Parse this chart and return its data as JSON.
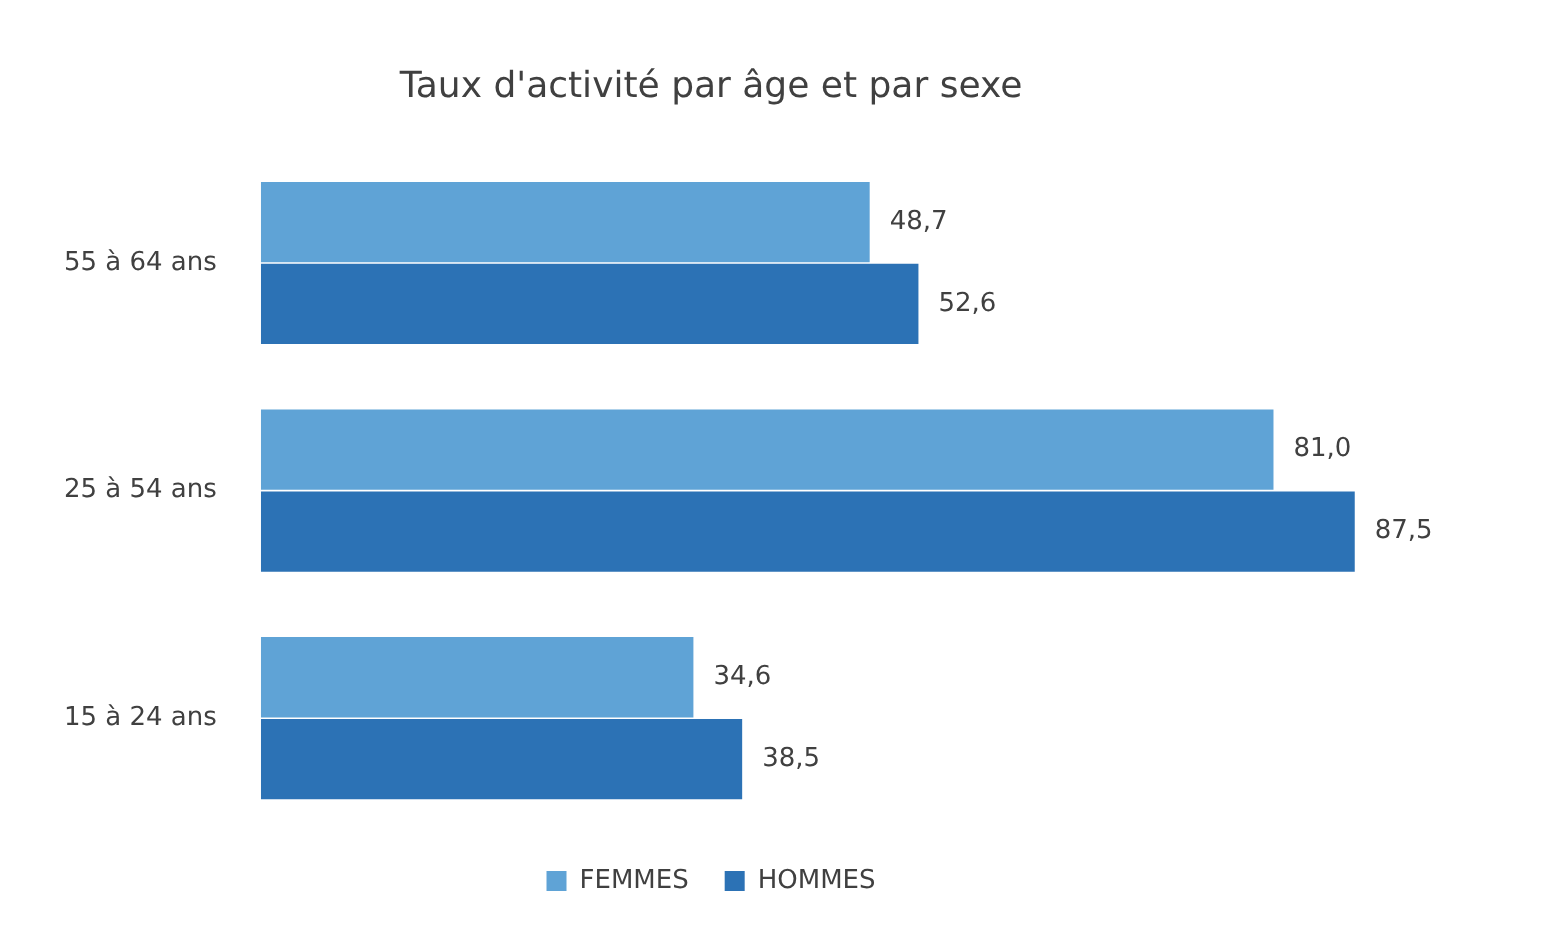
{
  "chart_data": {
    "type": "bar",
    "orientation": "horizontal",
    "title": "Taux d'activité par âge et par sexe",
    "categories": [
      "55 à 64 ans",
      "25 à 54 ans",
      "15 à 24 ans"
    ],
    "series": [
      {
        "name": "FEMMES",
        "color": "#5fa3d6",
        "values": [
          48.7,
          81.0,
          34.6
        ],
        "value_labels": [
          "48,7",
          "81,0",
          "34,6"
        ]
      },
      {
        "name": "HOMMES",
        "color": "#2c72b5",
        "values": [
          52.6,
          87.5,
          38.5
        ],
        "value_labels": [
          "52,6",
          "87,5",
          "38,5"
        ]
      }
    ],
    "legend": "bottom",
    "tick_labels": "y"
  }
}
